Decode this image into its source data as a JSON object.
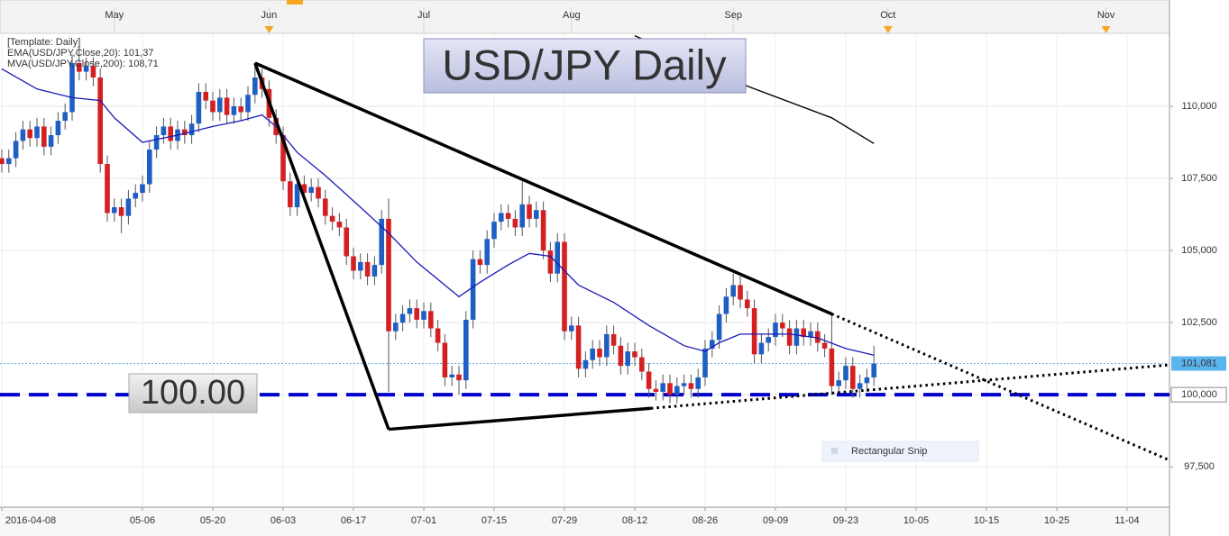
{
  "chart_data": {
    "type": "candlestick",
    "title": "USD/JPY Daily",
    "level_label": "100.00",
    "template_label": "[Template: Daily]",
    "snip_label": "Rectangular Snip",
    "up_color": "#1f5fc4",
    "down_color": "#d42020",
    "grid": true,
    "ylim": [
      96.1,
      112.5
    ],
    "yticks": [
      {
        "value": 97.5,
        "label": "97,500"
      },
      {
        "value": 100,
        "label": "100,000"
      },
      {
        "value": 102.5,
        "label": "102,500"
      },
      {
        "value": 105,
        "label": "105,000"
      },
      {
        "value": 107.5,
        "label": "107,500"
      },
      {
        "value": 110,
        "label": "110,000"
      }
    ],
    "x2ticks": [
      {
        "value": 16,
        "label": "May"
      },
      {
        "value": 38,
        "label": "Jun"
      },
      {
        "value": 60,
        "label": "Jul"
      },
      {
        "value": 81,
        "label": "Aug"
      },
      {
        "value": 104,
        "label": "Sep"
      },
      {
        "value": 126,
        "label": "Oct"
      },
      {
        "value": 157,
        "label": "Nov"
      }
    ],
    "event_markers": [
      38,
      126,
      157
    ],
    "categories": [
      "2016-04-08",
      null,
      null,
      null,
      null,
      null,
      null,
      null,
      null,
      null,
      null,
      null,
      null,
      null,
      null,
      null,
      null,
      null,
      null,
      null,
      "05-06",
      null,
      null,
      null,
      null,
      null,
      null,
      null,
      null,
      null,
      "05-20",
      null,
      null,
      null,
      null,
      null,
      null,
      null,
      null,
      null,
      "06-03",
      null,
      null,
      null,
      null,
      null,
      null,
      null,
      null,
      null,
      "06-17",
      null,
      null,
      null,
      null,
      null,
      null,
      null,
      null,
      null,
      "07-01",
      null,
      null,
      null,
      null,
      null,
      null,
      null,
      null,
      null,
      "07-15",
      null,
      null,
      null,
      null,
      null,
      null,
      null,
      null,
      null,
      "07-29",
      null,
      null,
      null,
      null,
      null,
      null,
      null,
      null,
      null,
      "08-12",
      null,
      null,
      null,
      null,
      null,
      null,
      null,
      null,
      null,
      "08-26",
      null,
      null,
      null,
      null,
      null,
      null,
      null,
      null,
      null,
      "09-09",
      null,
      null,
      null,
      null,
      null,
      null,
      null,
      null,
      null,
      "09-23",
      null,
      null,
      null,
      null,
      null,
      null,
      null,
      null,
      null,
      "10-05",
      null,
      null,
      null,
      null,
      null,
      null,
      null,
      null,
      null,
      "10-15",
      null,
      null,
      null,
      null,
      null,
      null,
      null,
      null,
      null,
      "10-25",
      null,
      null,
      null,
      null,
      null,
      null,
      null,
      null,
      null,
      "11-04"
    ],
    "open": [
      108.2,
      108.0,
      108.2,
      108.8,
      109.2,
      108.9,
      109.3,
      108.6,
      109.0,
      109.5,
      109.8,
      111.5,
      111.2,
      111.4,
      111.0,
      108.0,
      106.3,
      106.5,
      106.2,
      106.8,
      107.0,
      107.3,
      108.5,
      109.0,
      109.3,
      108.8,
      109.2,
      109.0,
      109.4,
      110.5,
      110.2,
      109.8,
      110.3,
      109.7,
      110.0,
      109.8,
      110.4,
      111.0,
      110.6,
      109.6,
      109.0,
      107.4,
      106.5,
      107.3,
      107.0,
      107.2,
      106.8,
      106.2,
      106.0,
      105.8,
      104.8,
      104.3,
      104.6,
      104.1,
      104.5,
      106.1,
      102.2,
      102.5,
      102.8,
      103.0,
      102.6,
      102.9,
      102.3,
      101.8,
      100.6,
      100.7,
      100.5,
      102.6,
      104.7,
      104.5,
      105.4,
      106.0,
      106.3,
      106.1,
      105.8,
      106.6,
      106.1,
      106.4,
      105.0,
      104.2,
      105.3,
      102.2,
      102.4,
      100.9,
      101.2,
      101.6,
      101.3,
      102.1,
      101.7,
      101.0,
      101.5,
      101.3,
      100.8,
      100.2,
      100.1,
      100.4,
      100.0,
      100.3,
      100.4,
      100.2,
      100.6,
      101.6,
      101.9,
      102.8,
      103.4,
      103.8,
      103.3,
      103.0,
      101.4,
      101.8,
      102.0,
      102.5,
      102.3,
      101.7,
      102.3,
      102.0,
      102.2,
      101.8,
      101.6,
      100.3,
      100.5,
      101.0,
      100.2,
      100.4,
      100.6,
      null,
      null,
      null,
      null,
      null,
      null,
      null,
      null,
      null,
      null,
      null,
      null,
      null,
      null,
      null,
      null,
      null,
      null,
      null,
      null,
      null,
      null,
      null,
      null,
      null,
      null,
      null,
      null,
      null,
      null,
      null,
      null,
      null,
      null,
      null,
      null
    ],
    "high": [
      108.5,
      108.5,
      109.1,
      109.5,
      109.5,
      109.6,
      109.6,
      109.3,
      109.8,
      110.1,
      111.8,
      112.1,
      111.7,
      111.7,
      111.3,
      108.3,
      106.8,
      106.8,
      107.1,
      107.3,
      107.6,
      108.8,
      109.3,
      109.6,
      109.6,
      109.5,
      109.5,
      109.7,
      110.8,
      110.8,
      110.5,
      110.6,
      110.6,
      110.3,
      110.3,
      110.7,
      111.5,
      111.3,
      110.9,
      109.9,
      109.3,
      107.7,
      107.6,
      107.6,
      107.5,
      107.5,
      107.1,
      106.5,
      106.3,
      106.1,
      105.1,
      104.9,
      104.9,
      104.8,
      106.4,
      106.8,
      102.8,
      103.1,
      103.3,
      103.3,
      103.2,
      103.2,
      102.6,
      102.1,
      101.0,
      101.0,
      102.9,
      105.0,
      105.0,
      105.7,
      106.3,
      106.6,
      106.6,
      106.4,
      107.4,
      106.9,
      106.7,
      106.7,
      105.3,
      105.6,
      105.6,
      102.7,
      102.7,
      101.5,
      101.9,
      101.9,
      102.4,
      102.4,
      102.0,
      101.8,
      101.8,
      101.6,
      101.1,
      100.5,
      100.7,
      100.7,
      100.6,
      100.7,
      100.7,
      100.9,
      101.9,
      102.2,
      103.1,
      103.7,
      104.2,
      104.1,
      103.6,
      103.3,
      102.1,
      102.3,
      102.8,
      102.8,
      102.6,
      102.6,
      102.6,
      102.5,
      102.5,
      102.1,
      102.8,
      100.8,
      101.3,
      101.3,
      100.7,
      100.9,
      101.7,
      null,
      null,
      null,
      null,
      null,
      null,
      null,
      null,
      null,
      null,
      null,
      null,
      null,
      null,
      null,
      null,
      null,
      null,
      null,
      null,
      null,
      null,
      null,
      null,
      null,
      null,
      null,
      null,
      null,
      null,
      null,
      null,
      null,
      null,
      null,
      null
    ],
    "low": [
      107.7,
      107.7,
      107.9,
      108.5,
      108.6,
      108.6,
      108.3,
      108.3,
      108.7,
      109.2,
      109.5,
      110.9,
      110.9,
      110.7,
      107.7,
      106.0,
      106.0,
      105.6,
      105.9,
      106.5,
      106.7,
      107.0,
      108.2,
      108.7,
      108.5,
      108.5,
      108.7,
      108.7,
      109.1,
      109.9,
      109.5,
      109.5,
      109.4,
      109.4,
      109.5,
      109.5,
      110.1,
      110.3,
      109.3,
      108.7,
      107.1,
      106.2,
      106.2,
      106.7,
      106.7,
      106.5,
      105.9,
      105.7,
      105.5,
      104.5,
      104.0,
      104.0,
      103.8,
      103.8,
      104.2,
      100.1,
      101.9,
      102.2,
      102.5,
      102.3,
      102.3,
      102.0,
      101.5,
      100.3,
      100.3,
      100.0,
      100.2,
      102.3,
      104.2,
      104.2,
      105.1,
      105.7,
      105.8,
      105.5,
      105.5,
      105.8,
      105.8,
      104.7,
      103.9,
      103.9,
      101.9,
      101.9,
      100.6,
      100.6,
      100.9,
      101.0,
      101.0,
      101.4,
      100.7,
      100.7,
      101.0,
      100.5,
      99.9,
      99.8,
      99.8,
      99.7,
      99.7,
      100.0,
      99.9,
      99.9,
      100.3,
      101.3,
      101.6,
      102.5,
      103.1,
      103.0,
      102.7,
      101.1,
      101.1,
      101.5,
      101.7,
      102.0,
      101.4,
      101.4,
      101.7,
      101.7,
      101.5,
      101.3,
      100.0,
      100.0,
      100.2,
      99.9,
      99.9,
      100.1,
      100.3,
      null,
      null,
      null,
      null,
      null,
      null,
      null,
      null,
      null,
      null,
      null,
      null,
      null,
      null,
      null,
      null,
      null,
      null,
      null,
      null,
      null,
      null,
      null,
      null,
      null,
      null,
      null,
      null,
      null,
      null,
      null,
      null,
      null,
      null,
      null,
      null
    ],
    "close": [
      108.0,
      108.2,
      108.8,
      109.2,
      108.9,
      109.3,
      108.6,
      109.0,
      109.5,
      109.8,
      111.5,
      111.2,
      111.4,
      111.0,
      108.0,
      106.3,
      106.5,
      106.2,
      106.8,
      107.0,
      107.3,
      108.5,
      109.0,
      109.3,
      108.8,
      109.2,
      109.0,
      109.4,
      110.5,
      110.2,
      109.8,
      110.3,
      109.7,
      110.0,
      109.8,
      110.4,
      111.0,
      110.6,
      109.6,
      109.0,
      107.4,
      106.5,
      107.3,
      107.0,
      107.2,
      106.8,
      106.2,
      106.0,
      105.8,
      104.8,
      104.3,
      104.6,
      104.1,
      104.5,
      106.1,
      102.2,
      102.5,
      102.8,
      103.0,
      102.6,
      102.9,
      102.3,
      101.8,
      100.6,
      100.7,
      100.5,
      102.6,
      104.7,
      104.5,
      105.4,
      106.0,
      106.3,
      106.1,
      105.8,
      106.6,
      106.1,
      106.4,
      105.0,
      104.2,
      105.3,
      102.2,
      102.4,
      100.9,
      101.2,
      101.6,
      101.3,
      102.1,
      101.7,
      101.0,
      101.5,
      101.3,
      100.8,
      100.2,
      100.1,
      100.4,
      100.0,
      100.3,
      100.4,
      100.2,
      100.6,
      101.6,
      101.9,
      102.8,
      103.4,
      103.8,
      103.3,
      103.0,
      101.4,
      101.8,
      102.0,
      102.5,
      102.3,
      101.7,
      102.3,
      102.0,
      102.2,
      101.8,
      101.6,
      100.3,
      100.5,
      101.0,
      100.2,
      100.4,
      100.6,
      101.08,
      null,
      null,
      null,
      null,
      null,
      null,
      null,
      null,
      null,
      null,
      null,
      null,
      null,
      null,
      null,
      null,
      null,
      null,
      null,
      null,
      null,
      null,
      null,
      null,
      null,
      null,
      null,
      null,
      null,
      null,
      null,
      null,
      null,
      null,
      null,
      null
    ],
    "indicators": [
      {
        "legend": "EMA(USD/JPY,Close,20): 101,37",
        "color": "#1a1ab8",
        "x": [
          0,
          5,
          10,
          14,
          16,
          20,
          25,
          30,
          34,
          37,
          39,
          42,
          46,
          51,
          55,
          59,
          63,
          65,
          68,
          72,
          75,
          78,
          82,
          87,
          92,
          97,
          100,
          102,
          105,
          109,
          112,
          116,
          120,
          124
        ],
        "values": [
          111.3,
          110.6,
          110.3,
          110.2,
          109.6,
          108.75,
          109.0,
          109.3,
          109.5,
          109.7,
          109.3,
          108.4,
          107.6,
          106.5,
          105.6,
          104.6,
          103.8,
          103.4,
          103.9,
          104.5,
          104.9,
          104.8,
          103.8,
          103.2,
          102.4,
          101.7,
          101.5,
          101.8,
          102.1,
          102.1,
          102.1,
          101.97,
          101.6,
          101.37
        ]
      },
      {
        "legend": "MVA(USD/JPY,Close,200): 108,71",
        "color": "#000000",
        "x": [
          90,
          106,
          118,
          124
        ],
        "values": [
          112.45,
          110.7,
          109.6,
          108.71
        ]
      }
    ],
    "trendlines": [
      {
        "from": [
          36,
          111.5
        ],
        "to": [
          55,
          98.8
        ],
        "style": "solid"
      },
      {
        "from": [
          55,
          98.8
        ],
        "to": [
          92.3,
          99.53
        ],
        "style": "solid"
      },
      {
        "from": [
          92.3,
          99.53
        ],
        "to": [
          165.8,
          101.03
        ],
        "style": "dotted"
      },
      {
        "from": [
          36,
          111.5
        ],
        "to": [
          118,
          102.8
        ],
        "style": "solid"
      },
      {
        "from": [
          118,
          102.8
        ],
        "to": [
          165.8,
          97.75
        ],
        "style": "dotted"
      }
    ],
    "level": {
      "value": 100,
      "label": "100,000",
      "color": "#0000cc"
    },
    "last_price": {
      "value": 101.081,
      "label": "101,081",
      "color": "#5ab4ee"
    }
  }
}
